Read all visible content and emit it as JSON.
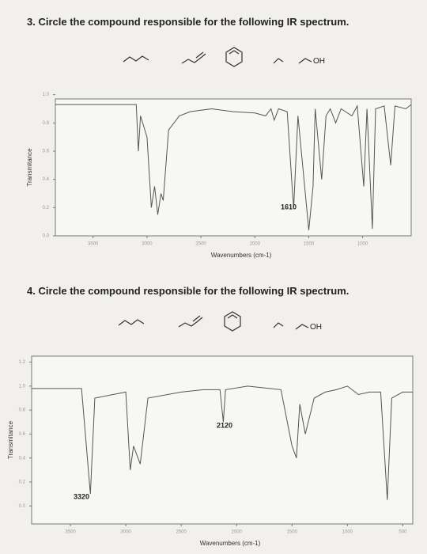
{
  "questions": [
    {
      "text": "3. Circle the compound responsible for the following IR spectrum.",
      "oh_label": "OH"
    },
    {
      "text": "4. Circle the compound responsible for the following IR spectrum.",
      "oh_label": "OH"
    }
  ],
  "chart_data": [
    {
      "type": "line",
      "y_label": "Transmitance",
      "x_label": "Wavenumbers (cm-1)",
      "xlim": [
        3850,
        550
      ],
      "xticks": [
        3500,
        3000,
        2500,
        2000,
        1500,
        1000
      ],
      "ylim": [
        0,
        0.97
      ],
      "yticks": [
        {
          "value": 1,
          "label": "1.0"
        },
        0.8,
        0.6,
        0.4,
        0.2,
        {
          "value": 0,
          "label": "0.0"
        }
      ],
      "annotations": [
        "1610"
      ],
      "color": "#555555",
      "x": [
        3850,
        3100,
        3080,
        3060,
        3000,
        2960,
        2930,
        2900,
        2870,
        2850,
        2800,
        2700,
        2600,
        2400,
        2200,
        2000,
        1900,
        1850,
        1820,
        1780,
        1700,
        1650,
        1640,
        1600,
        1500,
        1460,
        1440,
        1380,
        1340,
        1300,
        1250,
        1200,
        1100,
        1050,
        990,
        960,
        910,
        880,
        800,
        740,
        700,
        600,
        550
      ],
      "values": [
        0.93,
        0.93,
        0.6,
        0.85,
        0.7,
        0.2,
        0.35,
        0.15,
        0.3,
        0.25,
        0.75,
        0.85,
        0.88,
        0.9,
        0.88,
        0.87,
        0.85,
        0.9,
        0.82,
        0.9,
        0.88,
        0.3,
        0.2,
        0.85,
        0.04,
        0.35,
        0.9,
        0.4,
        0.85,
        0.9,
        0.8,
        0.9,
        0.85,
        0.92,
        0.35,
        0.9,
        0.05,
        0.9,
        0.92,
        0.5,
        0.92,
        0.9,
        0.93
      ]
    },
    {
      "type": "line",
      "y_label": "Transmitance",
      "x_label": "Wavenumbers (cm-1)",
      "xlim": [
        3850,
        410
      ],
      "xticks": [
        3500,
        3000,
        2500,
        2000,
        1500,
        1000,
        500
      ],
      "ylim": [
        -0.15,
        1.25
      ],
      "yticks": [
        1.2,
        {
          "value": 1,
          "label": "1.0"
        },
        0.8,
        0.6,
        0.4,
        0.2,
        {
          "value": 0,
          "label": "0.0"
        }
      ],
      "annotations": [
        "3320",
        "2120"
      ],
      "color": "#555555",
      "x": [
        3850,
        3400,
        3320,
        3280,
        3000,
        2960,
        2930,
        2870,
        2800,
        2500,
        2300,
        2150,
        2120,
        2100,
        1900,
        1700,
        1600,
        1500,
        1460,
        1430,
        1380,
        1300,
        1200,
        1100,
        1000,
        900,
        800,
        700,
        640,
        600,
        500,
        410
      ],
      "values": [
        0.98,
        0.98,
        0.1,
        0.9,
        0.95,
        0.3,
        0.5,
        0.35,
        0.9,
        0.95,
        0.97,
        0.97,
        0.7,
        0.97,
        1.0,
        0.98,
        0.97,
        0.5,
        0.4,
        0.85,
        0.6,
        0.9,
        0.95,
        0.97,
        1.0,
        0.93,
        0.95,
        0.95,
        0.05,
        0.9,
        0.95,
        0.95
      ]
    }
  ]
}
